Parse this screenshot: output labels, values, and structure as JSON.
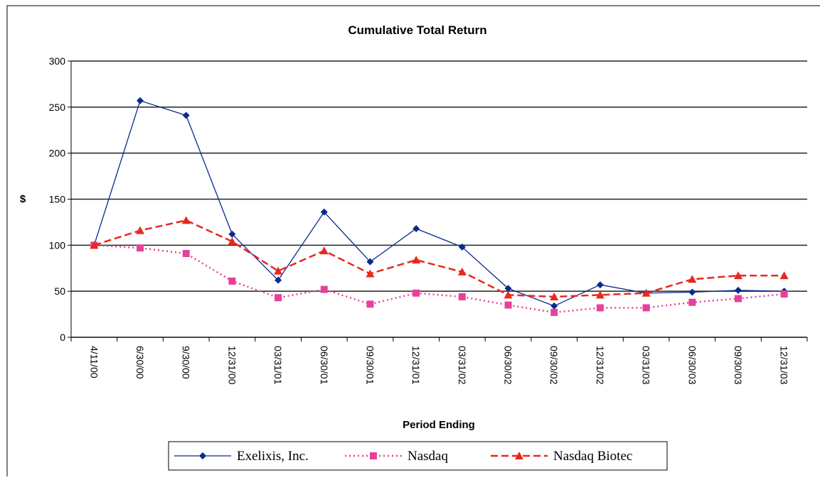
{
  "chart_data": {
    "type": "line",
    "title": "Cumulative Total Return",
    "x_label": "Period Ending",
    "y_label": "$",
    "categories": [
      "4/11/00",
      "6/30/00",
      "9/30/00",
      "12/31/00",
      "03/31/01",
      "06/30/01",
      "09/30/01",
      "12/31/01",
      "03/31/02",
      "06/30/02",
      "09/30/02",
      "12/31/02",
      "03/31/03",
      "06/30/03",
      "09/30/03",
      "12/31/03"
    ],
    "series": [
      {
        "name": "Exelixis, Inc.",
        "color": "#0a2a8a",
        "marker": "diamond",
        "dash": "solid",
        "values": [
          100,
          257,
          241,
          112,
          62,
          136,
          82,
          118,
          98,
          53,
          34,
          57,
          48,
          49,
          51,
          50
        ]
      },
      {
        "name": "Nasdaq",
        "color": "#e8409a",
        "marker": "square",
        "dash": "dotted",
        "values": [
          100,
          97,
          91,
          61,
          43,
          52,
          36,
          48,
          44,
          35,
          27,
          32,
          32,
          38,
          42,
          47
        ]
      },
      {
        "name": "Nasdaq Biotec",
        "color": "#e8281e",
        "marker": "triangle",
        "dash": "dashed",
        "values": [
          100,
          116,
          127,
          104,
          72,
          94,
          69,
          84,
          71,
          46,
          44,
          46,
          48,
          63,
          67,
          67
        ]
      }
    ],
    "ylim": [
      0,
      300
    ],
    "yticks": [
      0,
      50,
      100,
      150,
      200,
      250,
      300
    ],
    "grid": true,
    "legend": "bottom"
  }
}
